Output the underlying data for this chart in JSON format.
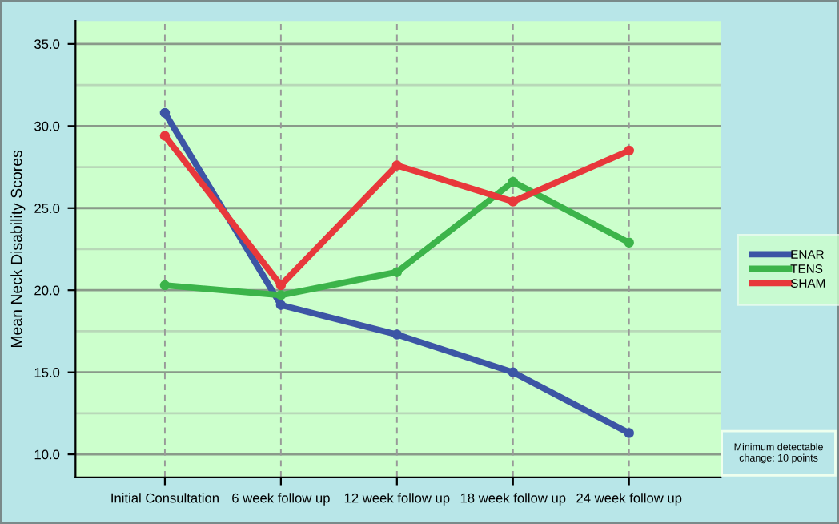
{
  "chart_data": {
    "type": "line",
    "ylabel": "Mean Neck Disability Scores",
    "categories": [
      "Initial Consultation",
      "6 week follow up",
      "12 week follow up",
      "18 week follow up",
      "24 week follow up"
    ],
    "series": [
      {
        "name": "ENAR",
        "color": "#3c55a5",
        "values": [
          30.8,
          19.1,
          17.3,
          15.0,
          11.3
        ]
      },
      {
        "name": "TENS",
        "color": "#3cb44a",
        "values": [
          20.3,
          19.7,
          21.1,
          26.6,
          22.9
        ]
      },
      {
        "name": "SHAM",
        "color": "#e8383b",
        "values": [
          29.4,
          20.3,
          27.6,
          25.4,
          28.5
        ]
      }
    ],
    "ylim": [
      8.6,
      36.4
    ],
    "yticks": [
      {
        "value": 10,
        "label": "10.0"
      },
      {
        "value": 12.5,
        "label": null
      },
      {
        "value": 15,
        "label": "15.0"
      },
      {
        "value": 17.5,
        "label": null
      },
      {
        "value": 20,
        "label": "20.0"
      },
      {
        "value": 22.5,
        "label": null
      },
      {
        "value": 25,
        "label": "25.0"
      },
      {
        "value": 27.5,
        "label": null
      },
      {
        "value": 30,
        "label": "30.0"
      },
      {
        "value": 32.5,
        "label": null
      },
      {
        "value": 35,
        "label": "35.0"
      }
    ],
    "grid": true,
    "legend": "right",
    "marker": "circle",
    "line_style": "solid",
    "annotations": [
      "Minimum detectable change: 10 points"
    ]
  }
}
